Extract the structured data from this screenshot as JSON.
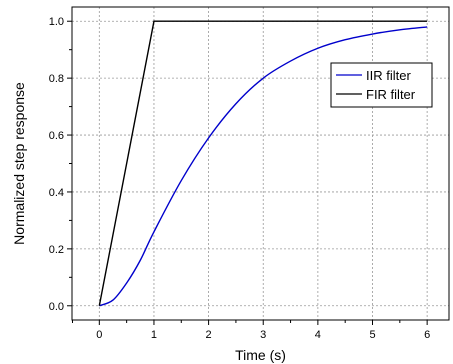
{
  "chart_data": {
    "type": "line",
    "title": "",
    "xlabel": "Time (s)",
    "ylabel": "Normalized step response",
    "xlim": [
      -0.5,
      6.4
    ],
    "ylim": [
      -0.05,
      1.05
    ],
    "x_ticks": [
      0,
      1,
      2,
      3,
      4,
      5,
      6
    ],
    "x_tick_labels": [
      "0",
      "1",
      "2",
      "3",
      "4",
      "5",
      "6"
    ],
    "y_ticks": [
      0.0,
      0.2,
      0.4,
      0.6,
      0.8,
      1.0
    ],
    "y_tick_labels": [
      "0.0",
      "0.2",
      "0.4",
      "0.6",
      "0.8",
      "1.0"
    ],
    "grid": true,
    "legend_position": "top-right",
    "series": [
      {
        "name": "IIR filter",
        "color": "#0000cc",
        "x": [
          0,
          0.25,
          0.5,
          0.75,
          1,
          1.5,
          2,
          2.5,
          3,
          3.5,
          4,
          4.5,
          5,
          5.5,
          6
        ],
        "y": [
          0.0,
          0.02,
          0.08,
          0.16,
          0.26,
          0.44,
          0.59,
          0.71,
          0.8,
          0.86,
          0.905,
          0.935,
          0.955,
          0.97,
          0.98
        ]
      },
      {
        "name": "FIR filter",
        "color": "#000000",
        "x": [
          0,
          1,
          6
        ],
        "y": [
          0.0,
          1.0,
          1.0
        ]
      }
    ]
  }
}
